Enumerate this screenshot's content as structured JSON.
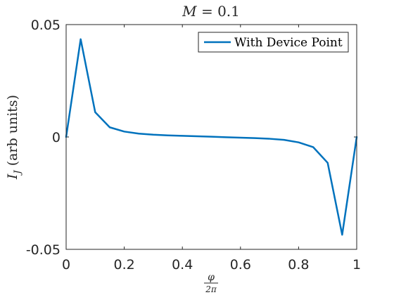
{
  "chart_data": {
    "type": "line",
    "title_var": "M",
    "title_rest": " = 0.1",
    "xlabel_num": "φ",
    "xlabel_den": "2π",
    "ylabel_main": "I",
    "ylabel_sub": "J",
    "ylabel_unit": " (arb units)",
    "xlim": [
      0,
      1
    ],
    "ylim": [
      -0.05,
      0.05
    ],
    "x_ticks": [
      0,
      0.2,
      0.4,
      0.6,
      0.8,
      1
    ],
    "x_tick_labels": [
      "0",
      "0.2",
      "0.4",
      "0.6",
      "0.8",
      "1"
    ],
    "y_ticks": [
      -0.05,
      0,
      0.05
    ],
    "y_tick_labels": [
      "-0.05",
      "0",
      "0.05"
    ],
    "grid": false,
    "legend_position": "top-right",
    "series": [
      {
        "name": "With Device Point",
        "color": "#0072BD",
        "x": [
          0,
          0.05,
          0.1,
          0.15,
          0.2,
          0.25,
          0.3,
          0.35,
          0.4,
          0.45,
          0.5,
          0.55,
          0.6,
          0.65,
          0.7,
          0.75,
          0.8,
          0.85,
          0.9,
          0.95,
          1
        ],
        "y": [
          0,
          0.0435,
          0.011,
          0.0043,
          0.0024,
          0.0015,
          0.001,
          0.0007,
          0.0005,
          0.0003,
          0.0001,
          -0.0001,
          -0.0003,
          -0.0005,
          -0.0008,
          -0.0013,
          -0.0024,
          -0.0045,
          -0.0115,
          -0.0435,
          0
        ]
      }
    ]
  }
}
